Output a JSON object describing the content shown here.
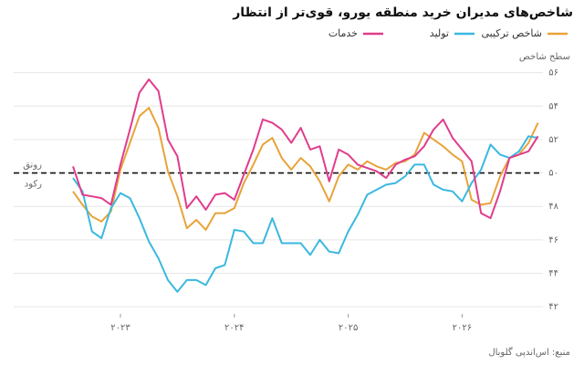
{
  "chart_data": {
    "type": "line",
    "title": "شاخص‌های مدیران خرید منطقه یورو، قوی‌تر از انتظار",
    "y_label": "سطح شاخص",
    "source": "منبع: اس‌اندپی گلوبال",
    "annotations": [
      "رونق",
      "رکود"
    ],
    "reference_value": 50,
    "categories": [
      null,
      null,
      null,
      null,
      null,
      "۲۰۲۳",
      null,
      null,
      null,
      null,
      null,
      null,
      null,
      null,
      null,
      null,
      null,
      "۲۰۲۴",
      null,
      null,
      null,
      null,
      null,
      null,
      null,
      null,
      null,
      null,
      null,
      "۲۰۲۵",
      null,
      null,
      null,
      null,
      null,
      null,
      null,
      null,
      null,
      null,
      null,
      "۲۰۲۶",
      null,
      null,
      null,
      null,
      null,
      null,
      null,
      null
    ],
    "series": [
      {
        "name": "شاخص ترکیبی",
        "color": "#e8a33a",
        "values": [
          48.9,
          48.1,
          47.4,
          47.1,
          47.7,
          50.2,
          51.8,
          53.4,
          53.9,
          52.7,
          50.1,
          48.6,
          46.7,
          47.2,
          46.6,
          47.6,
          47.6,
          47.9,
          49.4,
          50.5,
          51.7,
          52.1,
          50.9,
          50.2,
          50.9,
          50.4,
          49.5,
          48.3,
          49.8,
          50.5,
          50.2,
          50.7,
          50.4,
          50.2,
          50.6,
          50.7,
          51.1,
          52.4,
          52.0,
          51.6,
          51.1,
          50.7,
          48.4,
          48.1,
          48.2,
          49.8,
          50.9,
          51.1,
          51.8,
          53.0
        ]
      },
      {
        "name": "تولید",
        "color": "#3ab8e0",
        "values": [
          49.7,
          48.9,
          46.5,
          46.1,
          47.9,
          48.8,
          48.5,
          47.3,
          45.9,
          44.9,
          43.6,
          42.9,
          43.6,
          43.6,
          43.3,
          44.3,
          44.5,
          46.6,
          46.5,
          45.8,
          45.8,
          47.3,
          45.8,
          45.8,
          45.8,
          45.1,
          46.0,
          45.3,
          45.2,
          46.5,
          47.5,
          48.7,
          49.0,
          49.3,
          49.4,
          49.8,
          50.5,
          50.5,
          49.3,
          49.0,
          48.9,
          48.3,
          49.4,
          50.2,
          51.7,
          51.1,
          50.9,
          51.3,
          52.2,
          52.1
        ]
      },
      {
        "name": "خدمات",
        "color": "#e03c8c",
        "values": [
          50.4,
          48.7,
          48.6,
          48.5,
          48.1,
          50.5,
          52.6,
          54.8,
          55.6,
          54.9,
          52.0,
          51.0,
          47.9,
          48.6,
          47.8,
          48.7,
          48.8,
          48.4,
          49.9,
          51.4,
          53.2,
          53.0,
          52.6,
          51.8,
          52.7,
          51.4,
          51.6,
          49.5,
          51.4,
          51.1,
          50.5,
          50.3,
          50.1,
          49.7,
          50.5,
          50.8,
          51.0,
          51.6,
          52.6,
          53.2,
          52.1,
          51.4,
          50.7,
          47.6,
          47.3,
          48.9,
          50.9,
          51.1,
          51.3,
          52.2
        ]
      }
    ],
    "ylim": [
      41.5,
      57
    ],
    "yticks": [
      {
        "value": 42,
        "label": "۴۲"
      },
      {
        "value": 44,
        "label": "۴۴"
      },
      {
        "value": 46,
        "label": "۴۶"
      },
      {
        "value": 48,
        "label": "۴۸"
      },
      {
        "value": 50,
        "label": "۵۰"
      },
      {
        "value": 52,
        "label": "۵۲"
      },
      {
        "value": 54,
        "label": "۵۴"
      },
      {
        "value": 56,
        "label": "۵۶"
      }
    ],
    "grid": true
  }
}
